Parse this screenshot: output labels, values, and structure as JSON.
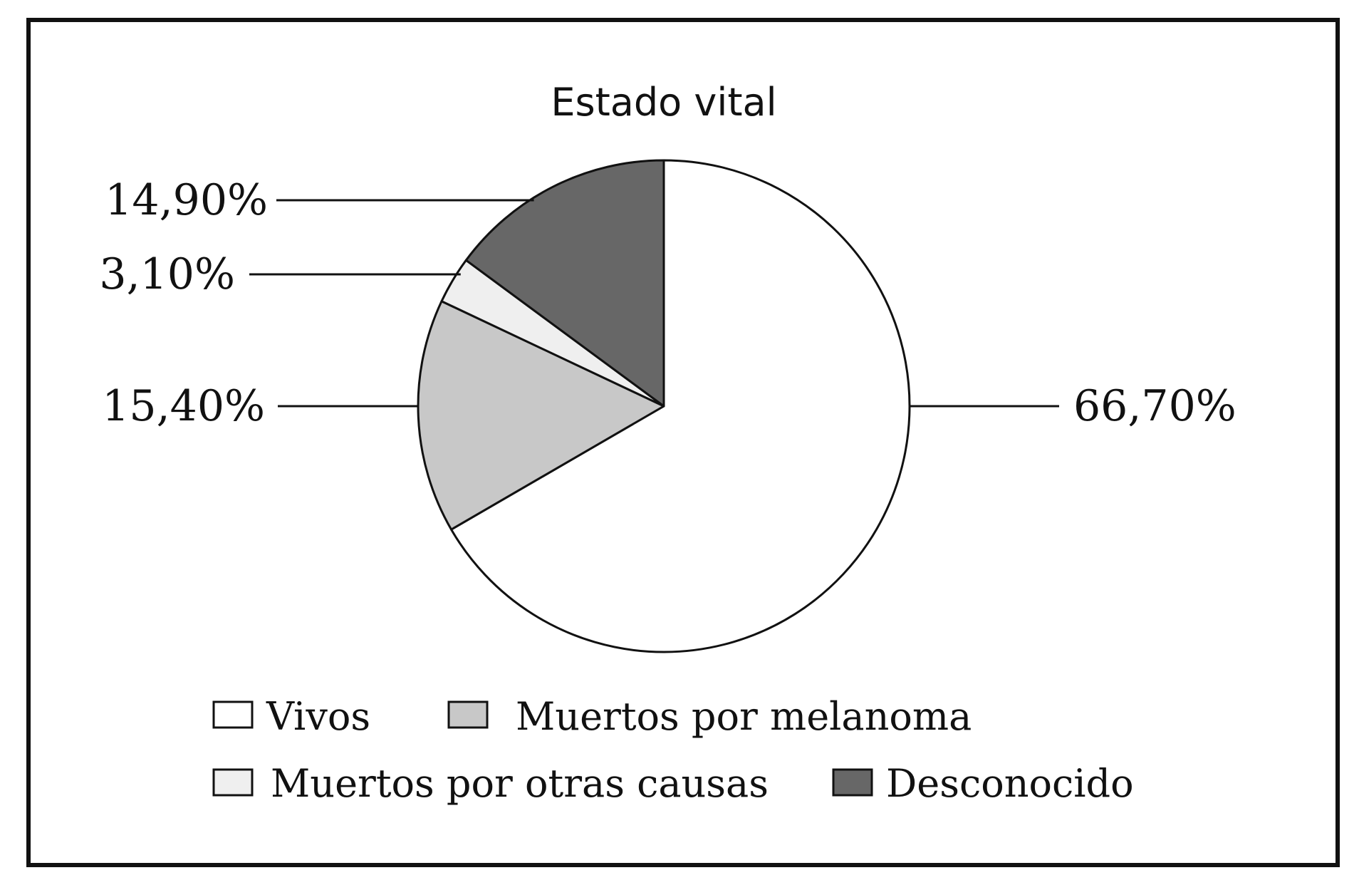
{
  "chart_data": {
    "type": "pie",
    "title": "Estado vital",
    "categories": [
      "Vivos",
      "Muertos por melanoma",
      "Muertos por otras causas",
      "Desconocido"
    ],
    "values": [
      66.7,
      15.4,
      3.1,
      14.9
    ],
    "labels": [
      "66,70%",
      "15,40%",
      "3,10%",
      "14,90%"
    ],
    "colors": [
      "#ffffff",
      "#c8c8c8",
      "#efefef",
      "#676767"
    ],
    "start_angle_deg": 0,
    "direction": "clockwise",
    "legend": {
      "placement": "bottom",
      "columns": 2,
      "entries": [
        "Vivos",
        "Muertos por melanoma",
        "Muertos por otras causas",
        "Desconocido"
      ]
    }
  }
}
